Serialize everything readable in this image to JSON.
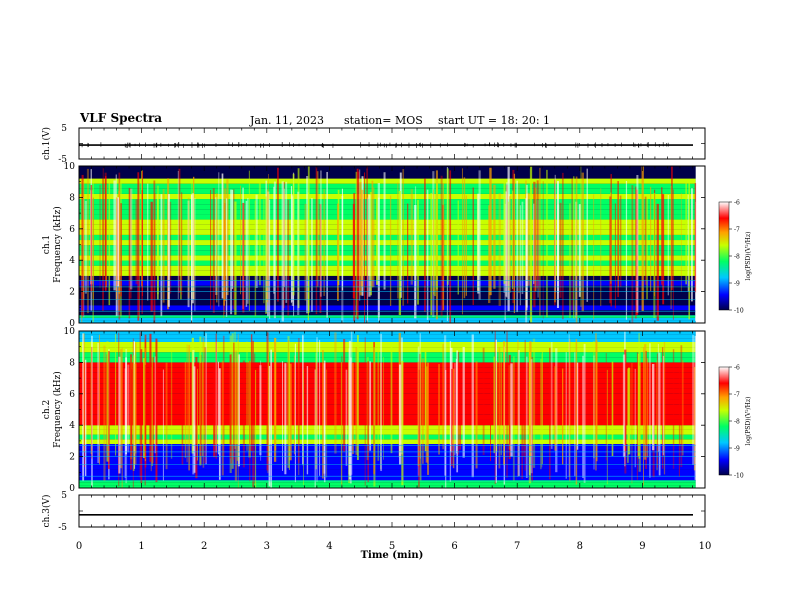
{
  "header": {
    "title": "VLF Spectra",
    "date": "Jan. 11, 2023",
    "station": "station= MOS",
    "start": "start  UT =   18: 20: 1"
  },
  "chart_data": [
    {
      "type": "line",
      "name": "ch1-voltage",
      "ylabel": "ch.1(V)",
      "ylim": [
        -5,
        5
      ],
      "yticks": [
        "5",
        "-5"
      ],
      "x": [
        0,
        10
      ],
      "values": [
        -0.5,
        -0.5
      ]
    },
    {
      "type": "heatmap",
      "name": "ch1-spectrogram",
      "ylabel": "ch.1\nFrequency (kHz)",
      "ylim": [
        0,
        10
      ],
      "yticks": [
        "0",
        "2",
        "4",
        "6",
        "8",
        "10"
      ],
      "xlim": [
        0,
        9.85
      ],
      "colorbar": {
        "label": "log(PSD)(V²/Hz)",
        "range": [
          -10,
          -6
        ],
        "ticks": [
          "-6",
          "-7",
          "-8",
          "-9",
          "-10"
        ]
      },
      "bands": [
        {
          "from": 0,
          "to": 0.5,
          "level": -8.5
        },
        {
          "from": 0.5,
          "to": 3,
          "level": -9.6
        },
        {
          "from": 3,
          "to": 9.2,
          "level": -8.0
        },
        {
          "from": 9.2,
          "to": 10,
          "level": -9.8
        }
      ]
    },
    {
      "type": "heatmap",
      "name": "ch2-spectrogram",
      "ylabel": "ch.2\nFrequency (kHz)",
      "ylim": [
        0,
        10
      ],
      "yticks": [
        "0",
        "2",
        "4",
        "6",
        "8",
        "10"
      ],
      "xlim": [
        0,
        9.85
      ],
      "colorbar": {
        "label": "log(PSD)(V²/Hz)",
        "range": [
          -10,
          -6
        ],
        "ticks": [
          "-6",
          "-7",
          "-8",
          "-9",
          "-10"
        ]
      },
      "bands": [
        {
          "from": 0,
          "to": 0.5,
          "level": -8.3
        },
        {
          "from": 0.5,
          "to": 2.8,
          "level": -9.3
        },
        {
          "from": 2.8,
          "to": 4,
          "level": -8.0
        },
        {
          "from": 4,
          "to": 8,
          "level": -6.8
        },
        {
          "from": 8,
          "to": 9.3,
          "level": -8.0
        },
        {
          "from": 9.3,
          "to": 10,
          "level": -8.8
        }
      ]
    },
    {
      "type": "line",
      "name": "ch3-voltage",
      "ylabel": "ch.3(V)",
      "ylim": [
        -5,
        5
      ],
      "yticks": [
        "5",
        "-5"
      ],
      "x": [
        0,
        10
      ],
      "values": [
        -1.2,
        -1.2
      ]
    }
  ],
  "xaxis": {
    "label": "Time (min)",
    "xlim": [
      0,
      10
    ],
    "ticks": [
      "0",
      "1",
      "2",
      "3",
      "4",
      "5",
      "6",
      "7",
      "8",
      "9",
      "10"
    ]
  },
  "colors": {
    "colormap": [
      "#00004a",
      "#0000ff",
      "#00c8ff",
      "#00ff64",
      "#c8ff00",
      "#ffa000",
      "#ff0000",
      "#ffffff"
    ]
  }
}
